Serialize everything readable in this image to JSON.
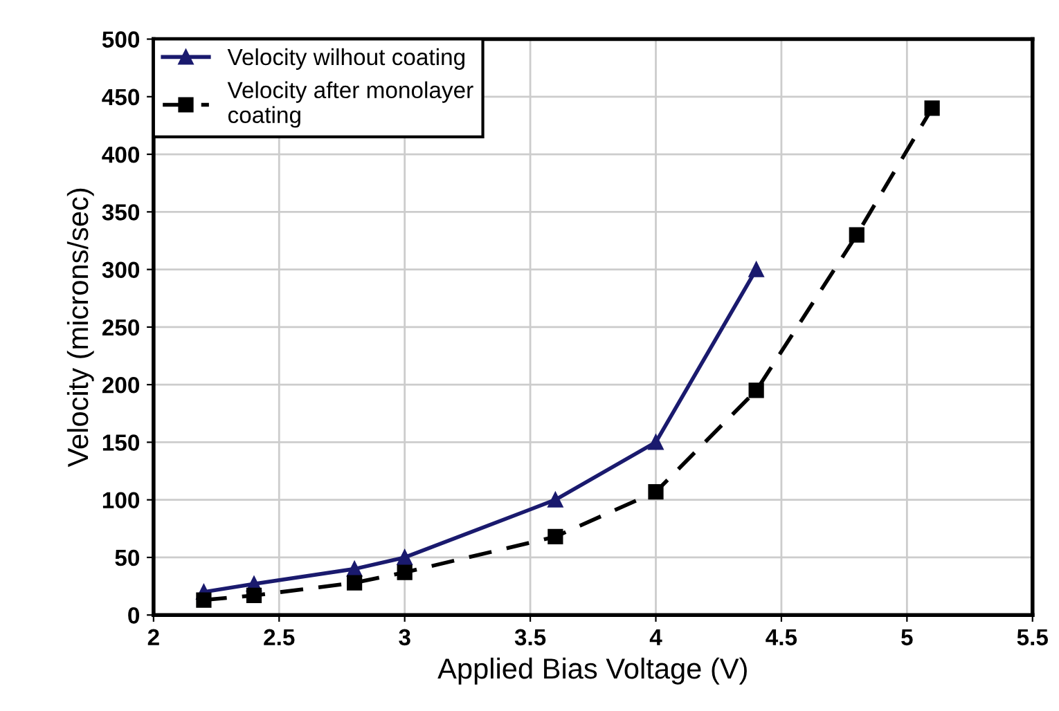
{
  "chart_data": {
    "type": "line",
    "xlabel": "Applied Bias Voltage (V)",
    "ylabel": "Velocity (microns/sec)",
    "xlim": [
      2,
      5.5
    ],
    "xticks": [
      2,
      2.5,
      3,
      3.5,
      4,
      4.5,
      5,
      5.5
    ],
    "ylim": [
      0,
      500
    ],
    "yticks": [
      0,
      50,
      100,
      150,
      200,
      250,
      300,
      350,
      400,
      450,
      500
    ],
    "grid": true,
    "legend": "top left",
    "series": [
      {
        "name": "Velocity wilhout coating",
        "color": "#1a1a6e",
        "marker": "triangle",
        "line_style": "solid",
        "x": [
          2.2,
          2.4,
          2.8,
          3,
          3.6,
          4,
          4.4
        ],
        "values": [
          20,
          27,
          40,
          50,
          100,
          150,
          300
        ]
      },
      {
        "name": "Velocity after monolayer\ncoating",
        "color": "#000000",
        "marker": "square",
        "line_style": "dashed",
        "x": [
          2.2,
          2.4,
          2.8,
          3,
          3.6,
          4,
          4.4,
          4.8,
          5.1
        ],
        "values": [
          13,
          17,
          28,
          37,
          68,
          107,
          195,
          330,
          440
        ]
      }
    ]
  }
}
